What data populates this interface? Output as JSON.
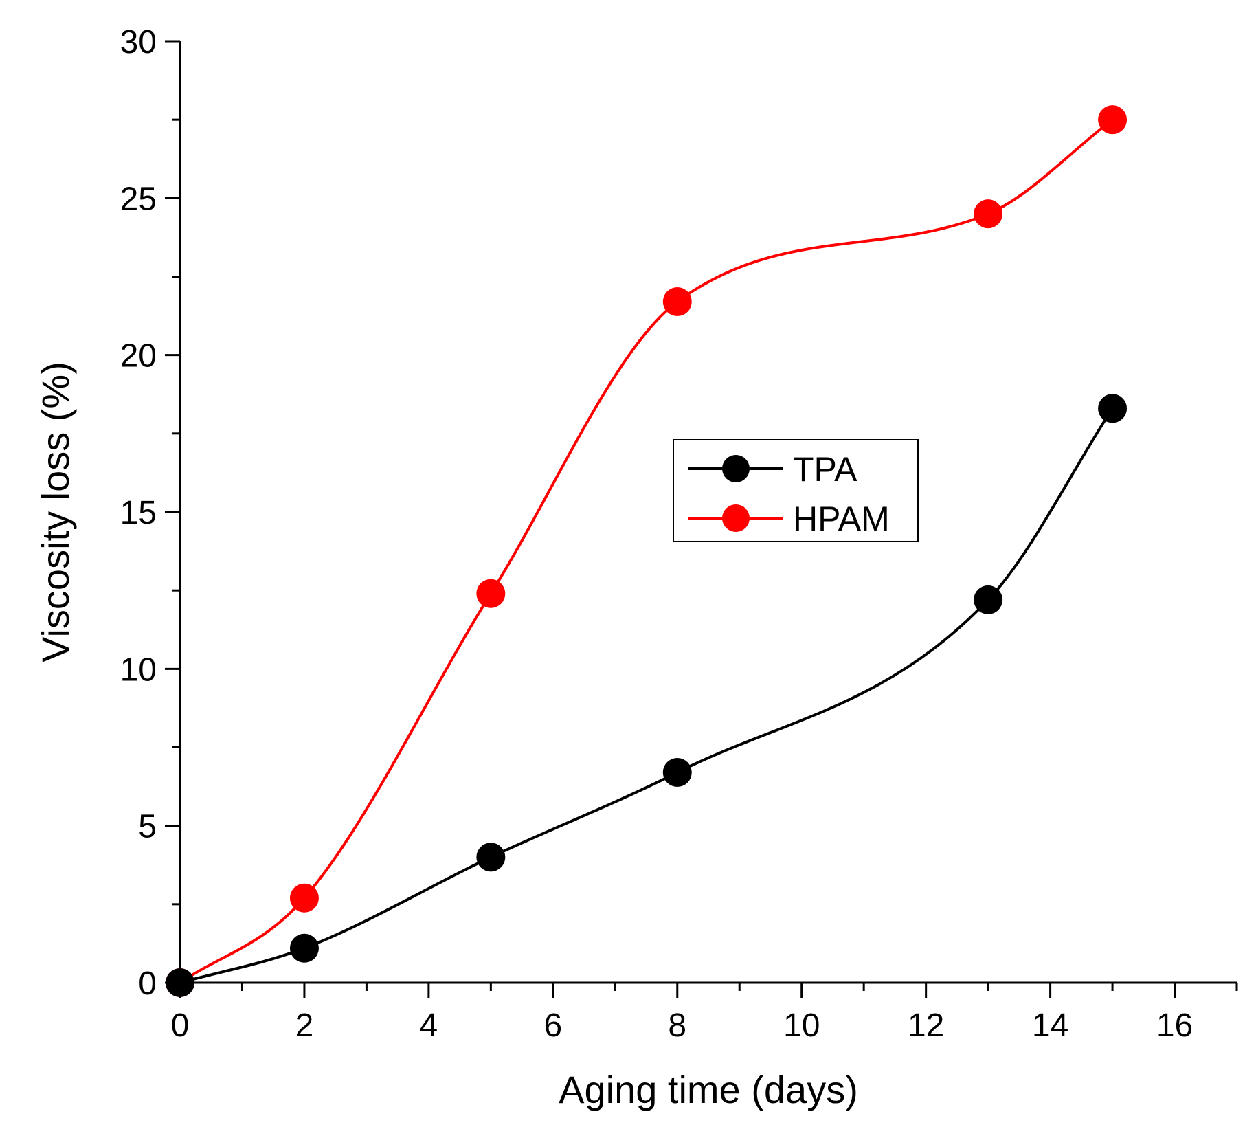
{
  "chart_data": {
    "type": "line",
    "title": "",
    "xlabel": "Aging time (days)",
    "ylabel": "Viscosity loss (%)",
    "xlim": [
      0,
      17
    ],
    "ylim": [
      0,
      30
    ],
    "x_ticks": [
      "0",
      "2",
      "4",
      "6",
      "8",
      "10",
      "12",
      "14",
      "16"
    ],
    "y_ticks": [
      "0",
      "5",
      "10",
      "15",
      "20",
      "25",
      "30"
    ],
    "legend_position": "center-right",
    "series": [
      {
        "name": "TPA",
        "color": "#000000",
        "x": [
          0,
          2,
          5,
          8,
          13,
          15
        ],
        "y": [
          0,
          1.1,
          4.0,
          6.7,
          12.2,
          18.3
        ]
      },
      {
        "name": "HPAM",
        "color": "#ff0000",
        "x": [
          0,
          2,
          5,
          8,
          13,
          15
        ],
        "y": [
          0,
          2.7,
          12.4,
          21.7,
          24.5,
          27.5
        ]
      }
    ]
  }
}
